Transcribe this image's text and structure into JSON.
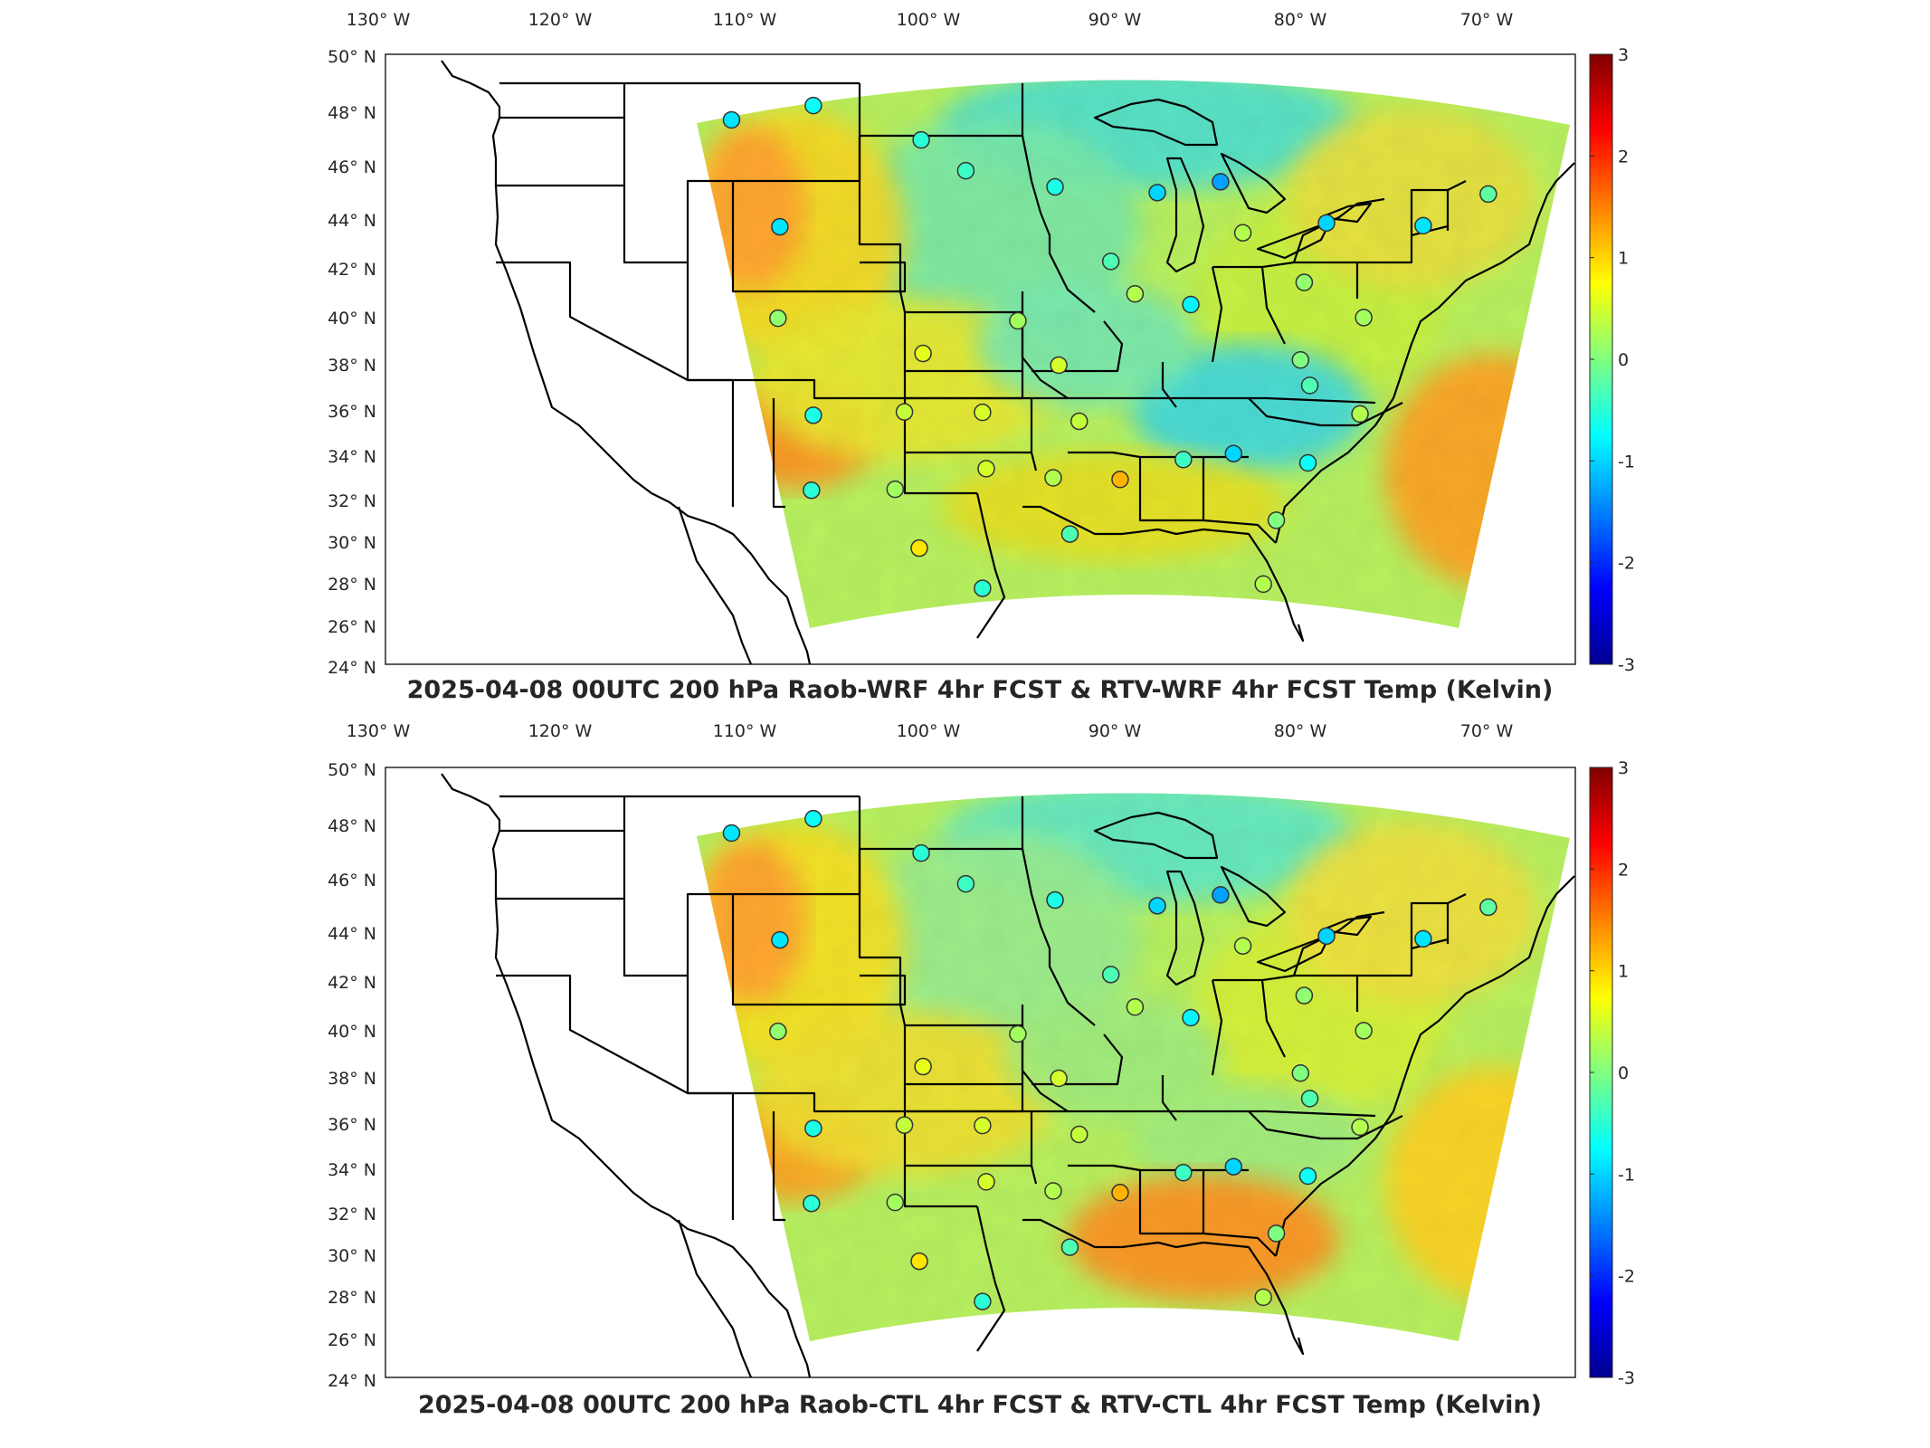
{
  "colorbar": {
    "ticks": [
      "3",
      "2",
      "1",
      "0",
      "-1",
      "-2",
      "-3"
    ],
    "colormap": [
      "#00008f",
      "#0000ff",
      "#0080ff",
      "#00ffff",
      "#80ff80",
      "#ffff00",
      "#ff8000",
      "#ff0000",
      "#800000"
    ]
  },
  "longitude_labels": [
    "130° W",
    "120° W",
    "110° W",
    "100° W",
    "90° W",
    "80° W",
    "70° W"
  ],
  "latitude_labels": [
    "50° N",
    "48° N",
    "46° N",
    "44° N",
    "42° N",
    "40° N",
    "38° N",
    "36° N",
    "34° N",
    "32° N",
    "30° N",
    "28° N",
    "26° N",
    "24° N"
  ],
  "panels": [
    {
      "id": "top",
      "title": "2025-04-08 00UTC 200 hPa Raob-WRF 4hr FCST & RTV-WRF 4hr FCST Temp (Kelvin)",
      "stations": [
        {
          "lon": -111.0,
          "lat": 47.5,
          "value": -0.9
        },
        {
          "lon": -106.6,
          "lat": 48.2,
          "value": -0.7
        },
        {
          "lon": -100.8,
          "lat": 46.8,
          "value": -0.5
        },
        {
          "lon": -98.4,
          "lat": 45.5,
          "value": -0.4
        },
        {
          "lon": -93.6,
          "lat": 44.8,
          "value": -0.6
        },
        {
          "lon": -88.1,
          "lat": 44.5,
          "value": -1.0
        },
        {
          "lon": -84.7,
          "lat": 44.9,
          "value": -1.3
        },
        {
          "lon": -108.4,
          "lat": 43.0,
          "value": -0.9
        },
        {
          "lon": -90.6,
          "lat": 41.6,
          "value": -0.3
        },
        {
          "lon": -83.5,
          "lat": 42.7,
          "value": 0.3
        },
        {
          "lon": -79.0,
          "lat": 43.0,
          "value": -1.0
        },
        {
          "lon": -73.8,
          "lat": 42.7,
          "value": -0.9
        },
        {
          "lon": -70.3,
          "lat": 43.9,
          "value": -0.2
        },
        {
          "lon": -108.5,
          "lat": 39.1,
          "value": 0.1
        },
        {
          "lon": -100.7,
          "lat": 37.7,
          "value": 0.6
        },
        {
          "lon": -95.6,
          "lat": 39.1,
          "value": 0.2
        },
        {
          "lon": -89.3,
          "lat": 40.2,
          "value": 0.3
        },
        {
          "lon": -86.3,
          "lat": 39.7,
          "value": -0.8
        },
        {
          "lon": -80.2,
          "lat": 40.5,
          "value": 0.1
        },
        {
          "lon": -77.0,
          "lat": 38.9,
          "value": 0.2
        },
        {
          "lon": -93.4,
          "lat": 37.2,
          "value": 0.5
        },
        {
          "lon": -80.4,
          "lat": 37.2,
          "value": 0.0
        },
        {
          "lon": -106.6,
          "lat": 35.0,
          "value": -0.6
        },
        {
          "lon": -101.7,
          "lat": 35.2,
          "value": 0.4
        },
        {
          "lon": -97.5,
          "lat": 35.2,
          "value": 0.5
        },
        {
          "lon": -92.3,
          "lat": 34.8,
          "value": 0.4
        },
        {
          "lon": -79.9,
          "lat": 36.1,
          "value": -0.3
        },
        {
          "lon": -77.2,
          "lat": 34.8,
          "value": 0.3
        },
        {
          "lon": -106.7,
          "lat": 31.8,
          "value": -0.5
        },
        {
          "lon": -102.2,
          "lat": 31.9,
          "value": 0.2
        },
        {
          "lon": -97.3,
          "lat": 32.8,
          "value": 0.5
        },
        {
          "lon": -93.7,
          "lat": 32.4,
          "value": 0.3
        },
        {
          "lon": -90.1,
          "lat": 32.3,
          "value": 1.2
        },
        {
          "lon": -86.7,
          "lat": 33.1,
          "value": -0.4
        },
        {
          "lon": -84.0,
          "lat": 33.3,
          "value": -1.0
        },
        {
          "lon": -80.0,
          "lat": 32.8,
          "value": -0.7
        },
        {
          "lon": -100.9,
          "lat": 29.4,
          "value": 0.9
        },
        {
          "lon": -97.5,
          "lat": 27.7,
          "value": -0.5
        },
        {
          "lon": -92.8,
          "lat": 30.0,
          "value": -0.3
        },
        {
          "lon": -81.7,
          "lat": 30.4,
          "value": 0.0
        },
        {
          "lon": -82.4,
          "lat": 27.7,
          "value": 0.3
        }
      ]
    },
    {
      "id": "bottom",
      "title": "2025-04-08 00UTC 200 hPa Raob-CTL 4hr FCST & RTV-CTL 4hr FCST Temp (Kelvin)",
      "stations": [
        {
          "lon": -111.0,
          "lat": 47.5,
          "value": -0.9
        },
        {
          "lon": -106.6,
          "lat": 48.2,
          "value": -0.7
        },
        {
          "lon": -100.8,
          "lat": 46.8,
          "value": -0.5
        },
        {
          "lon": -98.4,
          "lat": 45.5,
          "value": -0.4
        },
        {
          "lon": -93.6,
          "lat": 44.8,
          "value": -0.6
        },
        {
          "lon": -88.1,
          "lat": 44.5,
          "value": -1.0
        },
        {
          "lon": -84.7,
          "lat": 44.9,
          "value": -1.3
        },
        {
          "lon": -108.4,
          "lat": 43.0,
          "value": -0.9
        },
        {
          "lon": -90.6,
          "lat": 41.6,
          "value": -0.3
        },
        {
          "lon": -83.5,
          "lat": 42.7,
          "value": 0.3
        },
        {
          "lon": -79.0,
          "lat": 43.0,
          "value": -1.0
        },
        {
          "lon": -73.8,
          "lat": 42.7,
          "value": -0.9
        },
        {
          "lon": -70.3,
          "lat": 43.9,
          "value": -0.2
        },
        {
          "lon": -108.5,
          "lat": 39.1,
          "value": 0.1
        },
        {
          "lon": -100.7,
          "lat": 37.7,
          "value": 0.6
        },
        {
          "lon": -95.6,
          "lat": 39.1,
          "value": 0.2
        },
        {
          "lon": -89.3,
          "lat": 40.2,
          "value": 0.3
        },
        {
          "lon": -86.3,
          "lat": 39.7,
          "value": -0.8
        },
        {
          "lon": -80.2,
          "lat": 40.5,
          "value": 0.1
        },
        {
          "lon": -77.0,
          "lat": 38.9,
          "value": 0.2
        },
        {
          "lon": -93.4,
          "lat": 37.2,
          "value": 0.5
        },
        {
          "lon": -80.4,
          "lat": 37.2,
          "value": 0.0
        },
        {
          "lon": -106.6,
          "lat": 35.0,
          "value": -0.6
        },
        {
          "lon": -101.7,
          "lat": 35.2,
          "value": 0.4
        },
        {
          "lon": -97.5,
          "lat": 35.2,
          "value": 0.5
        },
        {
          "lon": -92.3,
          "lat": 34.8,
          "value": 0.4
        },
        {
          "lon": -79.9,
          "lat": 36.1,
          "value": -0.3
        },
        {
          "lon": -77.2,
          "lat": 34.8,
          "value": 0.3
        },
        {
          "lon": -106.7,
          "lat": 31.8,
          "value": -0.5
        },
        {
          "lon": -102.2,
          "lat": 31.9,
          "value": 0.2
        },
        {
          "lon": -97.3,
          "lat": 32.8,
          "value": 0.5
        },
        {
          "lon": -93.7,
          "lat": 32.4,
          "value": 0.3
        },
        {
          "lon": -90.1,
          "lat": 32.3,
          "value": 1.2
        },
        {
          "lon": -86.7,
          "lat": 33.1,
          "value": -0.4
        },
        {
          "lon": -84.0,
          "lat": 33.3,
          "value": -1.0
        },
        {
          "lon": -80.0,
          "lat": 32.8,
          "value": -0.7
        },
        {
          "lon": -100.9,
          "lat": 29.4,
          "value": 0.9
        },
        {
          "lon": -97.5,
          "lat": 27.7,
          "value": -0.5
        },
        {
          "lon": -92.8,
          "lat": 30.0,
          "value": -0.3
        },
        {
          "lon": -81.7,
          "lat": 30.4,
          "value": 0.0
        },
        {
          "lon": -82.4,
          "lat": 27.7,
          "value": 0.3
        }
      ]
    }
  ]
}
